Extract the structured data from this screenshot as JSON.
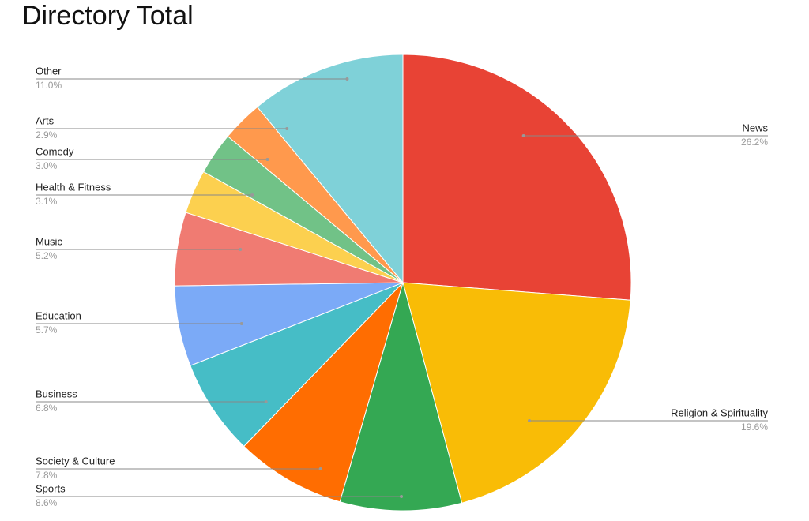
{
  "chart_data": {
    "type": "pie",
    "title": "Directory Total",
    "categories": [
      "News",
      "Religion & Spirituality",
      "Sports",
      "Society & Culture",
      "Business",
      "Education",
      "Music",
      "Health & Fitness",
      "Comedy",
      "Arts",
      "Other"
    ],
    "values": [
      26.2,
      19.6,
      8.6,
      7.8,
      6.8,
      5.7,
      5.2,
      3.1,
      3.0,
      2.9,
      11.0
    ],
    "value_labels": [
      "26.2%",
      "19.6%",
      "8.6%",
      "7.8%",
      "6.8%",
      "5.7%",
      "5.2%",
      "3.1%",
      "3.0%",
      "2.9%",
      "11.0%"
    ],
    "colors": [
      "#e84335",
      "#f9bc06",
      "#34a853",
      "#ff6d01",
      "#46bdc6",
      "#7baaf7",
      "#f07b72",
      "#fcd04f",
      "#71c287",
      "#ff994d",
      "#7fd1d8"
    ]
  }
}
